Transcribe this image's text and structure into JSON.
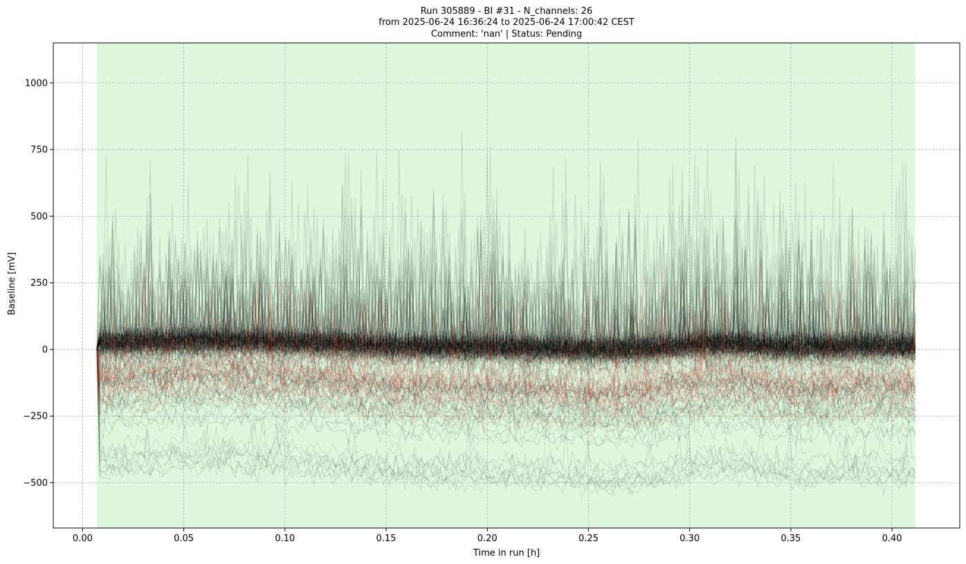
{
  "chart_data": {
    "type": "line",
    "title_lines": [
      "Run 305889  -  BI #31  -  N_channels: 26",
      "from  2025-06-24 16:36:24  to  2025-06-24 17:00:42 CEST",
      "Comment: 'nan' | Status: Pending"
    ],
    "xlabel": "Time in run [h]",
    "ylabel": "Baseline [mV]",
    "xlim": [
      -0.0145,
      0.4335
    ],
    "ylim": [
      -670,
      1150
    ],
    "xticks": [
      0.0,
      0.05,
      0.1,
      0.15,
      0.2,
      0.25,
      0.3,
      0.35,
      0.4
    ],
    "xtick_labels": [
      "0.00",
      "0.05",
      "0.10",
      "0.15",
      "0.20",
      "0.25",
      "0.30",
      "0.35",
      "0.40"
    ],
    "yticks": [
      -500,
      -250,
      0,
      250,
      500,
      750,
      1000
    ],
    "ytick_labels": [
      "−500",
      "−250",
      "0",
      "250",
      "500",
      "750",
      "1000"
    ],
    "grid": true,
    "shaded_region": {
      "x_start": 0.007,
      "x_end": 0.4115,
      "color": "#dff7df"
    },
    "x_range": [
      0.007,
      0.4115
    ],
    "series_colors": {
      "main": "#000000",
      "highlight": "#e0301e"
    },
    "series_groups": [
      {
        "color": "#000000",
        "count": 170,
        "description_center_mV": [
          -100,
          60
        ],
        "band_spread_mV": 80
      },
      {
        "color": "#e0301e",
        "count": 22,
        "description_center_mV": [
          -230,
          -40
        ],
        "band_spread_mV": 60
      }
    ]
  }
}
